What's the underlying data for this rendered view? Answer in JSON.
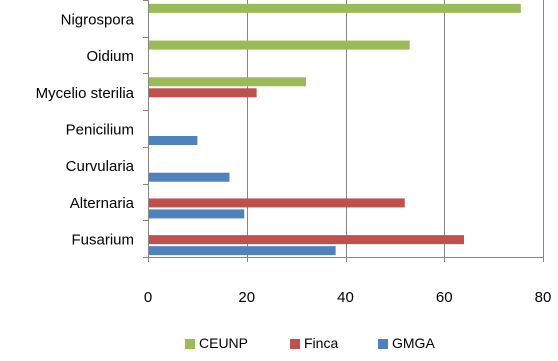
{
  "chart_data": {
    "type": "bar",
    "orientation": "horizontal",
    "categories": [
      "Nigrospora",
      "Oidium",
      "Mycelio sterilia",
      "Penicilium",
      "Curvularia",
      "Alternaria",
      "Fusarium"
    ],
    "series": [
      {
        "name": "CEUNP",
        "color": "#9bbb59",
        "values": [
          75.5,
          53,
          32,
          0,
          0,
          0,
          0
        ]
      },
      {
        "name": "Finca",
        "color": "#c0504d",
        "values": [
          0,
          0,
          22,
          0,
          0,
          52,
          64
        ]
      },
      {
        "name": "GMGA",
        "color": "#4f81bd",
        "values": [
          0,
          0,
          0,
          10,
          16.5,
          19.5,
          38
        ]
      }
    ],
    "x_ticks": [
      "0",
      "20",
      "40",
      "60",
      "80"
    ],
    "xlim": [
      0,
      80
    ],
    "grid": true,
    "legend_position": "bottom"
  }
}
